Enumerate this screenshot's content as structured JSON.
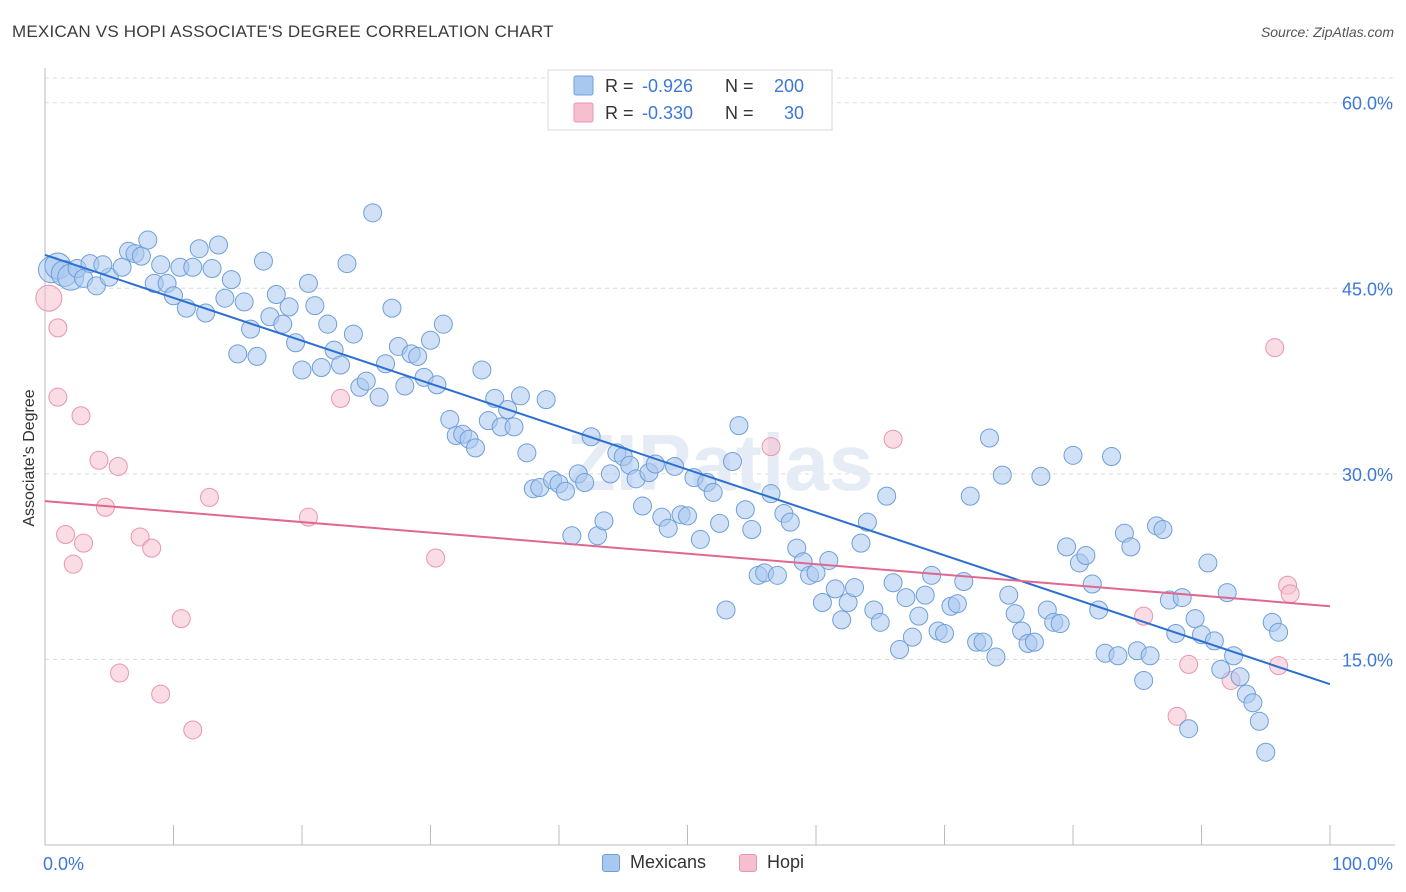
{
  "title": "MEXICAN VS HOPI ASSOCIATE'S DEGREE CORRELATION CHART",
  "source": "Source: ZipAtlas.com",
  "watermark": "ZIPatlas",
  "legend_top": {
    "rows": [
      {
        "r_label": "R = ",
        "r_value": "-0.926",
        "n_label": "N = ",
        "n_value": "200"
      },
      {
        "r_label": "R = ",
        "r_value": "-0.330",
        "n_label": "N = ",
        "n_value": "30"
      }
    ]
  },
  "colors": {
    "mexicans_fill": "#a9c8f0",
    "mexicans_stroke": "#6f9fd8",
    "mexicans_line": "#2d6fd0",
    "hopi_fill": "#f6bfd0",
    "hopi_stroke": "#e995b0",
    "hopi_line": "#e06890",
    "tick_label": "#3d78d8",
    "grid": "#dcdcdc"
  },
  "chart_data": {
    "type": "scatter",
    "title": "MEXICAN VS HOPI ASSOCIATE'S DEGREE CORRELATION CHART",
    "xlabel": "",
    "ylabel": "Associate's Degree",
    "xlim": [
      0,
      100
    ],
    "ylim": [
      0,
      62
    ],
    "x_tick_labels": [
      "0.0%",
      "100.0%"
    ],
    "y_ticks": [
      15,
      30,
      45,
      60
    ],
    "y_tick_labels": [
      "15.0%",
      "30.0%",
      "45.0%",
      "60.0%"
    ],
    "series": [
      {
        "name": "Mexicans",
        "R": -0.926,
        "N": 200,
        "trend": {
          "x": [
            0,
            100
          ],
          "y": [
            47.7,
            13.0
          ]
        },
        "points": [
          [
            0.5,
            46.5
          ],
          [
            1,
            46.8
          ],
          [
            1.5,
            46.2
          ],
          [
            2,
            45.9
          ],
          [
            2.5,
            46.6
          ],
          [
            3,
            45.8
          ],
          [
            3.5,
            47.0
          ],
          [
            4,
            45.2
          ],
          [
            5,
            45.9
          ],
          [
            4.5,
            46.9
          ],
          [
            6,
            46.7
          ],
          [
            6.5,
            48.0
          ],
          [
            7,
            47.8
          ],
          [
            7.5,
            47.6
          ],
          [
            8,
            48.9
          ],
          [
            8.5,
            45.4
          ],
          [
            9,
            46.9
          ],
          [
            9.5,
            45.4
          ],
          [
            10,
            44.4
          ],
          [
            10.5,
            46.7
          ],
          [
            11,
            43.4
          ],
          [
            11.5,
            46.7
          ],
          [
            12,
            48.2
          ],
          [
            12.5,
            43.0
          ],
          [
            13,
            46.6
          ],
          [
            13.5,
            48.5
          ],
          [
            14,
            44.2
          ],
          [
            14.5,
            45.7
          ],
          [
            15,
            39.7
          ],
          [
            15.5,
            43.9
          ],
          [
            16,
            41.7
          ],
          [
            16.5,
            39.5
          ],
          [
            17,
            47.2
          ],
          [
            17.5,
            42.7
          ],
          [
            18,
            44.5
          ],
          [
            18.5,
            42.1
          ],
          [
            19,
            43.5
          ],
          [
            19.5,
            40.6
          ],
          [
            20,
            38.4
          ],
          [
            20.5,
            45.4
          ],
          [
            21,
            43.6
          ],
          [
            21.5,
            38.6
          ],
          [
            22,
            42.1
          ],
          [
            22.5,
            40.0
          ],
          [
            23,
            38.8
          ],
          [
            23.5,
            47.0
          ],
          [
            24,
            41.3
          ],
          [
            24.5,
            37.0
          ],
          [
            25,
            37.5
          ],
          [
            25.5,
            51.1
          ],
          [
            26,
            36.2
          ],
          [
            26.5,
            38.9
          ],
          [
            27,
            43.4
          ],
          [
            27.5,
            40.3
          ],
          [
            28,
            37.1
          ],
          [
            28.5,
            39.7
          ],
          [
            29,
            39.5
          ],
          [
            29.5,
            37.8
          ],
          [
            30,
            40.8
          ],
          [
            30.5,
            37.2
          ],
          [
            31,
            42.1
          ],
          [
            31.5,
            34.4
          ],
          [
            32,
            33.1
          ],
          [
            32.5,
            33.2
          ],
          [
            33,
            32.8
          ],
          [
            33.5,
            32.1
          ],
          [
            34,
            38.4
          ],
          [
            34.5,
            34.3
          ],
          [
            35,
            36.1
          ],
          [
            35.5,
            33.8
          ],
          [
            36,
            35.2
          ],
          [
            36.5,
            33.8
          ],
          [
            37,
            36.3
          ],
          [
            37.5,
            31.7
          ],
          [
            38,
            28.8
          ],
          [
            38.5,
            28.9
          ],
          [
            39,
            36.0
          ],
          [
            39.5,
            29.5
          ],
          [
            40,
            29.2
          ],
          [
            40.5,
            28.6
          ],
          [
            41,
            25.0
          ],
          [
            41.5,
            30.0
          ],
          [
            42,
            29.3
          ],
          [
            42.5,
            33.0
          ],
          [
            43,
            25.0
          ],
          [
            43.5,
            26.2
          ],
          [
            44,
            30.0
          ],
          [
            44.5,
            31.7
          ],
          [
            45,
            31.4
          ],
          [
            45.5,
            30.7
          ],
          [
            46,
            29.6
          ],
          [
            46.5,
            27.4
          ],
          [
            47,
            30.1
          ],
          [
            47.5,
            30.8
          ],
          [
            48,
            26.5
          ],
          [
            48.5,
            25.6
          ],
          [
            49,
            30.6
          ],
          [
            49.5,
            26.7
          ],
          [
            50,
            26.6
          ],
          [
            50.5,
            29.7
          ],
          [
            51,
            24.7
          ],
          [
            51.5,
            29.3
          ],
          [
            52,
            28.5
          ],
          [
            52.5,
            26.0
          ],
          [
            53,
            19.0
          ],
          [
            53.5,
            31.0
          ],
          [
            54,
            33.9
          ],
          [
            54.5,
            27.1
          ],
          [
            55,
            25.5
          ],
          [
            55.5,
            21.8
          ],
          [
            56,
            22.0
          ],
          [
            56.5,
            28.4
          ],
          [
            57,
            21.8
          ],
          [
            57.5,
            26.8
          ],
          [
            58,
            26.1
          ],
          [
            58.5,
            24.0
          ],
          [
            59,
            22.9
          ],
          [
            59.5,
            21.8
          ],
          [
            60,
            22.0
          ],
          [
            60.5,
            19.6
          ],
          [
            61,
            23.0
          ],
          [
            61.5,
            20.7
          ],
          [
            62,
            18.2
          ],
          [
            62.5,
            19.6
          ],
          [
            63,
            20.8
          ],
          [
            63.5,
            24.4
          ],
          [
            64,
            26.1
          ],
          [
            64.5,
            19.0
          ],
          [
            65,
            18.0
          ],
          [
            65.5,
            28.2
          ],
          [
            66,
            21.2
          ],
          [
            66.5,
            15.8
          ],
          [
            67,
            20.0
          ],
          [
            67.5,
            16.8
          ],
          [
            68,
            18.5
          ],
          [
            68.5,
            20.2
          ],
          [
            69,
            21.8
          ],
          [
            69.5,
            17.3
          ],
          [
            70,
            17.1
          ],
          [
            70.5,
            19.3
          ],
          [
            71,
            19.5
          ],
          [
            71.5,
            21.3
          ],
          [
            72,
            28.2
          ],
          [
            72.5,
            16.4
          ],
          [
            73,
            16.4
          ],
          [
            73.5,
            32.9
          ],
          [
            74,
            15.2
          ],
          [
            74.5,
            29.9
          ],
          [
            75,
            20.2
          ],
          [
            75.5,
            18.7
          ],
          [
            76,
            17.3
          ],
          [
            76.5,
            16.3
          ],
          [
            77,
            16.4
          ],
          [
            77.5,
            29.8
          ],
          [
            78,
            19.0
          ],
          [
            78.5,
            18.0
          ],
          [
            79,
            17.9
          ],
          [
            79.5,
            24.1
          ],
          [
            80,
            31.5
          ],
          [
            80.5,
            22.8
          ],
          [
            81,
            23.4
          ],
          [
            81.5,
            21.1
          ],
          [
            82,
            19.0
          ],
          [
            82.5,
            15.5
          ],
          [
            83,
            31.4
          ],
          [
            83.5,
            15.3
          ],
          [
            84,
            25.2
          ],
          [
            84.5,
            24.1
          ],
          [
            85,
            15.7
          ],
          [
            85.5,
            13.3
          ],
          [
            86,
            15.3
          ],
          [
            86.5,
            25.8
          ],
          [
            87,
            25.5
          ],
          [
            87.5,
            19.8
          ],
          [
            88,
            17.1
          ],
          [
            88.5,
            20.0
          ],
          [
            89,
            9.4
          ],
          [
            89.5,
            18.3
          ],
          [
            90,
            17.0
          ],
          [
            90.5,
            22.8
          ],
          [
            91,
            16.5
          ],
          [
            91.5,
            14.2
          ],
          [
            92,
            20.4
          ],
          [
            92.5,
            15.3
          ],
          [
            93,
            13.6
          ],
          [
            93.5,
            12.2
          ],
          [
            94,
            11.5
          ],
          [
            94.5,
            10.0
          ],
          [
            95,
            7.5
          ],
          [
            95.5,
            18.0
          ],
          [
            96,
            17.2
          ]
        ]
      },
      {
        "name": "Hopi",
        "R": -0.33,
        "N": 30,
        "trend": {
          "x": [
            0,
            100
          ],
          "y": [
            27.8,
            19.3
          ]
        },
        "points": [
          [
            0.3,
            44.2
          ],
          [
            1,
            41.8
          ],
          [
            1,
            36.2
          ],
          [
            1.6,
            25.1
          ],
          [
            2.2,
            22.7
          ],
          [
            2.8,
            34.7
          ],
          [
            3,
            24.4
          ],
          [
            4.2,
            31.1
          ],
          [
            4.7,
            27.3
          ],
          [
            5.7,
            30.6
          ],
          [
            5.8,
            13.9
          ],
          [
            7.4,
            24.9
          ],
          [
            8.3,
            24.0
          ],
          [
            9,
            12.2
          ],
          [
            10.6,
            18.3
          ],
          [
            11.5,
            9.3
          ],
          [
            12.8,
            28.1
          ],
          [
            20.5,
            26.5
          ],
          [
            23,
            36.1
          ],
          [
            30.4,
            23.2
          ],
          [
            56.5,
            32.2
          ],
          [
            66,
            32.8
          ],
          [
            85.5,
            18.5
          ],
          [
            88.1,
            10.4
          ],
          [
            89,
            14.6
          ],
          [
            92.3,
            13.3
          ],
          [
            95.7,
            40.2
          ],
          [
            96,
            14.5
          ],
          [
            96.7,
            21.0
          ],
          [
            96.9,
            20.3
          ]
        ]
      }
    ],
    "legend": "top-center"
  },
  "legend_bottom": {
    "items": [
      "Mexicans",
      "Hopi"
    ]
  }
}
